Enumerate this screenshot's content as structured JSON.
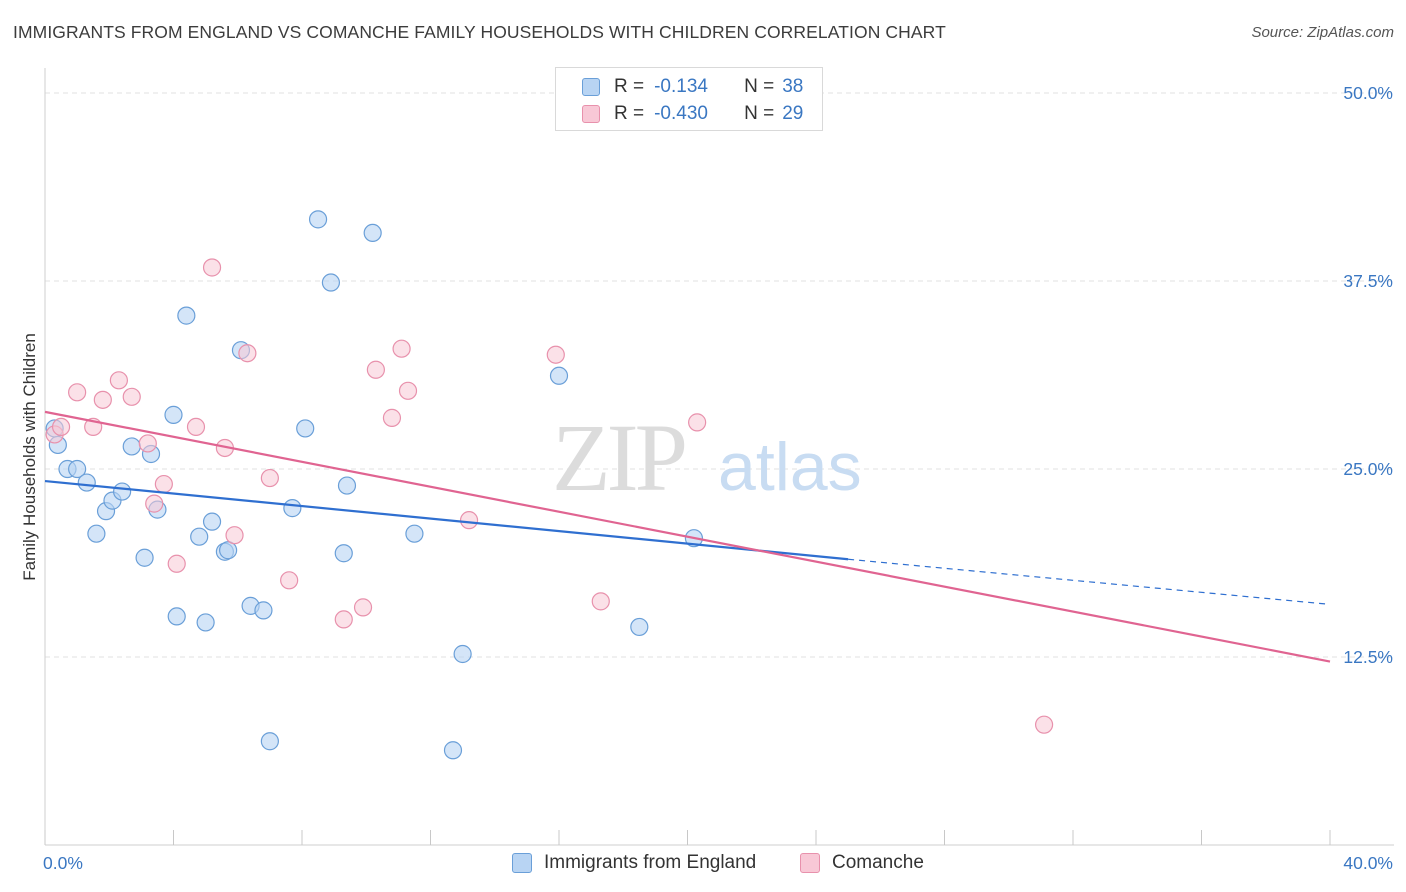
{
  "header": {
    "title": "IMMIGRANTS FROM ENGLAND VS COMANCHE FAMILY HOUSEHOLDS WITH CHILDREN CORRELATION CHART",
    "source": "Source: ZipAtlas.com"
  },
  "watermark": {
    "zip": "ZIP",
    "atlas": "atlas"
  },
  "legend": {
    "rows": [
      {
        "r_label": "R =",
        "r_value": "-0.134",
        "n_label": "N =",
        "n_value": "38"
      },
      {
        "r_label": "R =",
        "r_value": "-0.430",
        "n_label": "N =",
        "n_value": "29"
      }
    ]
  },
  "colors": {
    "blue_fill": "#b8d4f3",
    "blue_stroke": "#6a9fd8",
    "blue_line": "#2f6fd0",
    "pink_fill": "#f8c8d6",
    "pink_stroke": "#e891ac",
    "pink_line": "#e06491",
    "tick_text": "#3a77c2",
    "grid": "#e2e2e2"
  },
  "chart_data": {
    "type": "scatter",
    "title": "IMMIGRANTS FROM ENGLAND VS COMANCHE FAMILY HOUSEHOLDS WITH CHILDREN CORRELATION CHART",
    "xlabel": "",
    "ylabel": "Family Households with Children",
    "xlim": [
      0,
      40
    ],
    "ylim": [
      0,
      51
    ],
    "x_tick_labels": [
      "0.0%",
      "40.0%"
    ],
    "y_ticks": [
      12.5,
      25.0,
      37.5,
      50.0
    ],
    "y_tick_labels": [
      "12.5%",
      "25.0%",
      "37.5%",
      "50.0%"
    ],
    "grid": true,
    "legend_position": "top-center",
    "series": [
      {
        "name": "Immigrants from England",
        "color": "#6a9fd8",
        "points": [
          [
            0.3,
            27.7
          ],
          [
            0.4,
            26.6
          ],
          [
            0.7,
            25.0
          ],
          [
            1.0,
            25.0
          ],
          [
            1.3,
            24.1
          ],
          [
            1.6,
            20.7
          ],
          [
            1.9,
            22.2
          ],
          [
            2.1,
            22.9
          ],
          [
            2.4,
            23.5
          ],
          [
            2.7,
            26.5
          ],
          [
            3.1,
            19.1
          ],
          [
            3.3,
            26.0
          ],
          [
            3.5,
            22.3
          ],
          [
            4.0,
            28.6
          ],
          [
            4.1,
            15.2
          ],
          [
            4.4,
            35.2
          ],
          [
            4.8,
            20.5
          ],
          [
            5.0,
            14.8
          ],
          [
            5.2,
            21.5
          ],
          [
            5.6,
            19.5
          ],
          [
            5.7,
            19.6
          ],
          [
            6.1,
            32.9
          ],
          [
            6.4,
            15.9
          ],
          [
            6.8,
            15.6
          ],
          [
            7.0,
            6.9
          ],
          [
            7.7,
            22.4
          ],
          [
            8.1,
            27.7
          ],
          [
            8.5,
            41.6
          ],
          [
            8.9,
            37.4
          ],
          [
            9.3,
            19.4
          ],
          [
            9.4,
            23.9
          ],
          [
            10.2,
            40.7
          ],
          [
            11.5,
            20.7
          ],
          [
            13.0,
            12.7
          ],
          [
            12.7,
            6.3
          ],
          [
            16.0,
            31.2
          ],
          [
            18.5,
            14.5
          ],
          [
            20.2,
            20.4
          ]
        ]
      },
      {
        "name": "Comanche",
        "color": "#e891ac",
        "points": [
          [
            0.3,
            27.3
          ],
          [
            0.5,
            27.8
          ],
          [
            1.0,
            30.1
          ],
          [
            1.5,
            27.8
          ],
          [
            1.8,
            29.6
          ],
          [
            2.3,
            30.9
          ],
          [
            2.7,
            29.8
          ],
          [
            3.2,
            26.7
          ],
          [
            3.4,
            22.7
          ],
          [
            3.7,
            24.0
          ],
          [
            4.1,
            18.7
          ],
          [
            4.7,
            27.8
          ],
          [
            5.2,
            38.4
          ],
          [
            5.6,
            26.4
          ],
          [
            5.9,
            20.6
          ],
          [
            6.3,
            32.7
          ],
          [
            7.0,
            24.4
          ],
          [
            7.6,
            17.6
          ],
          [
            9.3,
            15.0
          ],
          [
            9.9,
            15.8
          ],
          [
            10.3,
            31.6
          ],
          [
            10.8,
            28.4
          ],
          [
            11.1,
            33.0
          ],
          [
            11.3,
            30.2
          ],
          [
            13.2,
            21.6
          ],
          [
            15.9,
            32.6
          ],
          [
            17.3,
            16.2
          ],
          [
            20.3,
            28.1
          ],
          [
            31.1,
            8.0
          ]
        ]
      }
    ],
    "trend_lines": [
      {
        "series": "Immigrants from England",
        "x": [
          0,
          25
        ],
        "y": [
          24.2,
          19.0
        ],
        "dashed_extension_to": [
          40,
          16.0
        ]
      },
      {
        "series": "Comanche",
        "x": [
          0,
          40
        ],
        "y": [
          28.8,
          12.2
        ]
      }
    ]
  },
  "bottom_legend": {
    "items": [
      {
        "label": "Immigrants from England"
      },
      {
        "label": "Comanche"
      }
    ]
  }
}
